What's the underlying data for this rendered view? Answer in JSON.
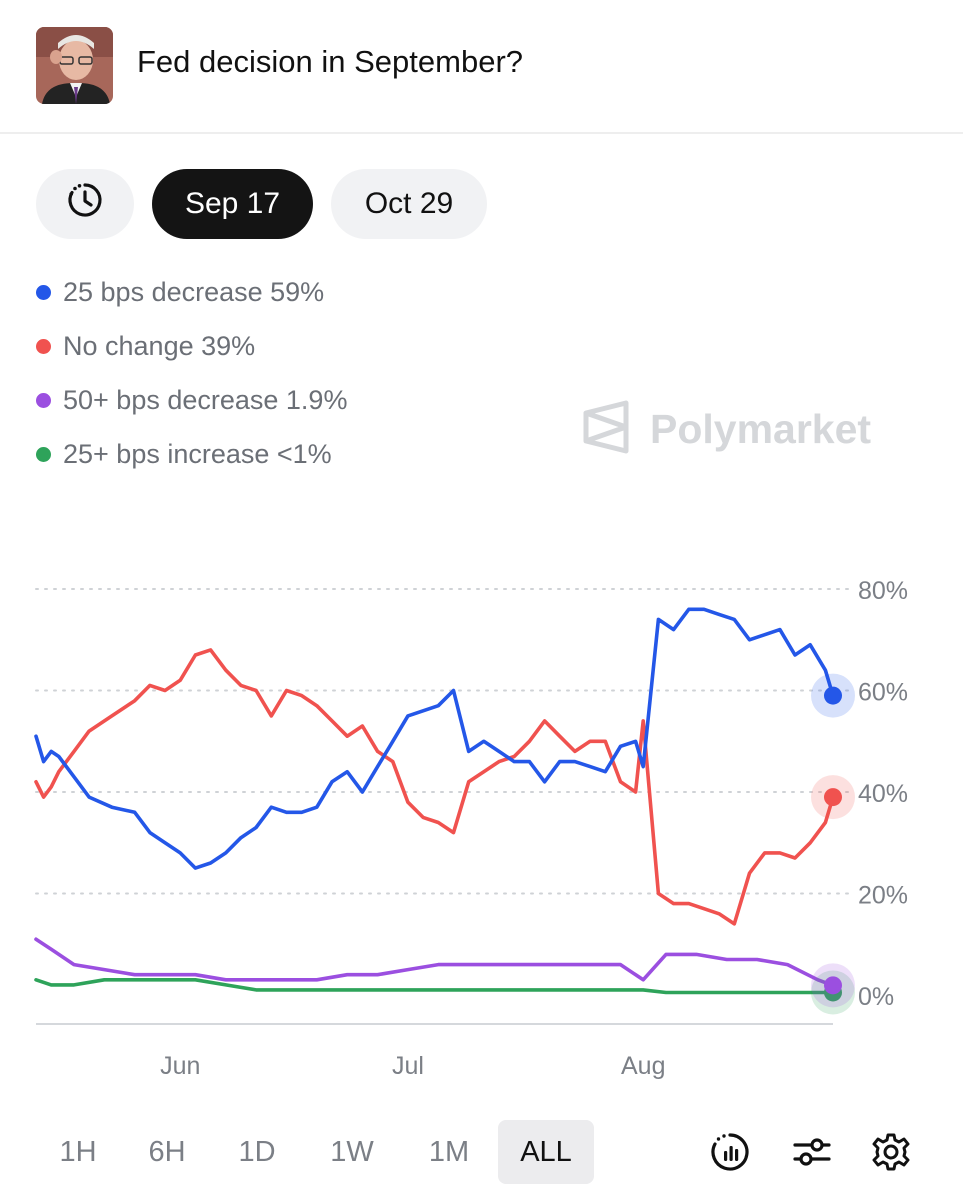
{
  "header": {
    "title": "Fed decision in September?"
  },
  "date_tabs": [
    {
      "label": "Sep 17",
      "active": true
    },
    {
      "label": "Oct 29",
      "active": false
    }
  ],
  "legend": [
    {
      "label": "25 bps decrease 59%",
      "color": "#2457e8"
    },
    {
      "label": "No change 39%",
      "color": "#f0524f"
    },
    {
      "label": "50+ bps decrease 1.9%",
      "color": "#9b4fe0"
    },
    {
      "label": "25+ bps increase <1%",
      "color": "#2ea35a"
    }
  ],
  "watermark": "Polymarket",
  "chart_data": {
    "type": "line",
    "x_range": [
      "2025-05-13",
      "2025-08-26"
    ],
    "x_ticks": [
      {
        "date": "2025-06-01",
        "label": "Jun"
      },
      {
        "date": "2025-07-01",
        "label": "Jul"
      },
      {
        "date": "2025-08-01",
        "label": "Aug"
      }
    ],
    "y_range": [
      0,
      80
    ],
    "y_ticks": [
      {
        "value": 80,
        "label": "80%"
      },
      {
        "value": 60,
        "label": "60%"
      },
      {
        "value": 40,
        "label": "40%"
      },
      {
        "value": 20,
        "label": "20%"
      },
      {
        "value": 0,
        "label": "0%"
      }
    ],
    "grid": "horizontal-dotted",
    "series": [
      {
        "name": "25 bps decrease",
        "color": "#2457e8",
        "x": [
          "2025-05-13",
          "2025-05-14",
          "2025-05-15",
          "2025-05-16",
          "2025-05-18",
          "2025-05-20",
          "2025-05-23",
          "2025-05-26",
          "2025-05-28",
          "2025-05-30",
          "2025-06-01",
          "2025-06-03",
          "2025-06-05",
          "2025-06-07",
          "2025-06-09",
          "2025-06-11",
          "2025-06-13",
          "2025-06-15",
          "2025-06-17",
          "2025-06-19",
          "2025-06-21",
          "2025-06-23",
          "2025-06-25",
          "2025-06-27",
          "2025-06-29",
          "2025-07-01",
          "2025-07-03",
          "2025-07-05",
          "2025-07-07",
          "2025-07-09",
          "2025-07-11",
          "2025-07-13",
          "2025-07-15",
          "2025-07-17",
          "2025-07-19",
          "2025-07-21",
          "2025-07-23",
          "2025-07-25",
          "2025-07-27",
          "2025-07-29",
          "2025-07-31",
          "2025-08-01",
          "2025-08-03",
          "2025-08-05",
          "2025-08-07",
          "2025-08-09",
          "2025-08-11",
          "2025-08-13",
          "2025-08-15",
          "2025-08-17",
          "2025-08-19",
          "2025-08-21",
          "2025-08-23",
          "2025-08-25",
          "2025-08-26"
        ],
        "values": [
          51,
          46,
          48,
          47,
          43,
          39,
          37,
          36,
          32,
          30,
          28,
          25,
          26,
          28,
          31,
          33,
          37,
          36,
          36,
          37,
          42,
          44,
          40,
          45,
          50,
          55,
          56,
          57,
          60,
          48,
          50,
          48,
          46,
          46,
          42,
          46,
          46,
          45,
          44,
          49,
          50,
          45,
          74,
          72,
          76,
          76,
          75,
          74,
          70,
          71,
          72,
          67,
          69,
          64,
          59
        ]
      },
      {
        "name": "No change",
        "color": "#f0524f",
        "x": [
          "2025-05-13",
          "2025-05-14",
          "2025-05-15",
          "2025-05-16",
          "2025-05-18",
          "2025-05-20",
          "2025-05-23",
          "2025-05-26",
          "2025-05-28",
          "2025-05-30",
          "2025-06-01",
          "2025-06-03",
          "2025-06-05",
          "2025-06-07",
          "2025-06-09",
          "2025-06-11",
          "2025-06-13",
          "2025-06-15",
          "2025-06-17",
          "2025-06-19",
          "2025-06-21",
          "2025-06-23",
          "2025-06-25",
          "2025-06-27",
          "2025-06-29",
          "2025-07-01",
          "2025-07-03",
          "2025-07-05",
          "2025-07-07",
          "2025-07-09",
          "2025-07-11",
          "2025-07-13",
          "2025-07-15",
          "2025-07-17",
          "2025-07-19",
          "2025-07-21",
          "2025-07-23",
          "2025-07-25",
          "2025-07-27",
          "2025-07-29",
          "2025-07-31",
          "2025-08-01",
          "2025-08-03",
          "2025-08-05",
          "2025-08-07",
          "2025-08-09",
          "2025-08-11",
          "2025-08-13",
          "2025-08-15",
          "2025-08-17",
          "2025-08-19",
          "2025-08-21",
          "2025-08-23",
          "2025-08-25",
          "2025-08-26"
        ],
        "values": [
          42,
          39,
          41,
          44,
          48,
          52,
          55,
          58,
          61,
          60,
          62,
          67,
          68,
          64,
          61,
          60,
          55,
          60,
          59,
          57,
          54,
          51,
          53,
          48,
          46,
          38,
          35,
          34,
          32,
          42,
          44,
          46,
          47,
          50,
          54,
          51,
          48,
          50,
          50,
          42,
          40,
          54,
          20,
          18,
          18,
          17,
          16,
          14,
          24,
          28,
          28,
          27,
          30,
          34,
          39
        ]
      },
      {
        "name": "50+ bps decrease",
        "color": "#9b4fe0",
        "x": [
          "2025-05-13",
          "2025-05-15",
          "2025-05-18",
          "2025-05-22",
          "2025-05-26",
          "2025-05-30",
          "2025-06-03",
          "2025-06-07",
          "2025-06-11",
          "2025-06-15",
          "2025-06-19",
          "2025-06-23",
          "2025-06-27",
          "2025-07-01",
          "2025-07-05",
          "2025-07-09",
          "2025-07-13",
          "2025-07-17",
          "2025-07-21",
          "2025-07-25",
          "2025-07-29",
          "2025-08-01",
          "2025-08-04",
          "2025-08-08",
          "2025-08-12",
          "2025-08-16",
          "2025-08-20",
          "2025-08-24",
          "2025-08-26"
        ],
        "values": [
          11,
          9,
          6,
          5,
          4,
          4,
          4,
          3,
          3,
          3,
          3,
          4,
          4,
          5,
          6,
          6,
          6,
          6,
          6,
          6,
          6,
          3,
          8,
          8,
          7,
          7,
          6,
          3,
          1.9
        ]
      },
      {
        "name": "25+ bps increase",
        "color": "#2ea35a",
        "x": [
          "2025-05-13",
          "2025-05-15",
          "2025-05-18",
          "2025-05-22",
          "2025-05-26",
          "2025-05-30",
          "2025-06-03",
          "2025-06-07",
          "2025-06-11",
          "2025-06-15",
          "2025-06-19",
          "2025-06-23",
          "2025-06-27",
          "2025-07-01",
          "2025-07-05",
          "2025-07-09",
          "2025-07-13",
          "2025-07-17",
          "2025-07-21",
          "2025-07-25",
          "2025-07-29",
          "2025-08-01",
          "2025-08-04",
          "2025-08-08",
          "2025-08-12",
          "2025-08-16",
          "2025-08-20",
          "2025-08-24",
          "2025-08-26"
        ],
        "values": [
          3,
          2,
          2,
          3,
          3,
          3,
          3,
          2,
          1,
          1,
          1,
          1,
          1,
          1,
          1,
          1,
          1,
          1,
          1,
          1,
          1,
          1,
          0.5,
          0.5,
          0.5,
          0.5,
          0.5,
          0.5,
          0.5
        ]
      }
    ]
  },
  "time_ranges": [
    {
      "label": "1H",
      "active": false
    },
    {
      "label": "6H",
      "active": false
    },
    {
      "label": "1D",
      "active": false
    },
    {
      "label": "1W",
      "active": false
    },
    {
      "label": "1M",
      "active": false
    },
    {
      "label": "ALL",
      "active": true
    }
  ],
  "toolbar_icons": [
    "history-chart-icon",
    "sliders-icon",
    "gear-icon"
  ]
}
